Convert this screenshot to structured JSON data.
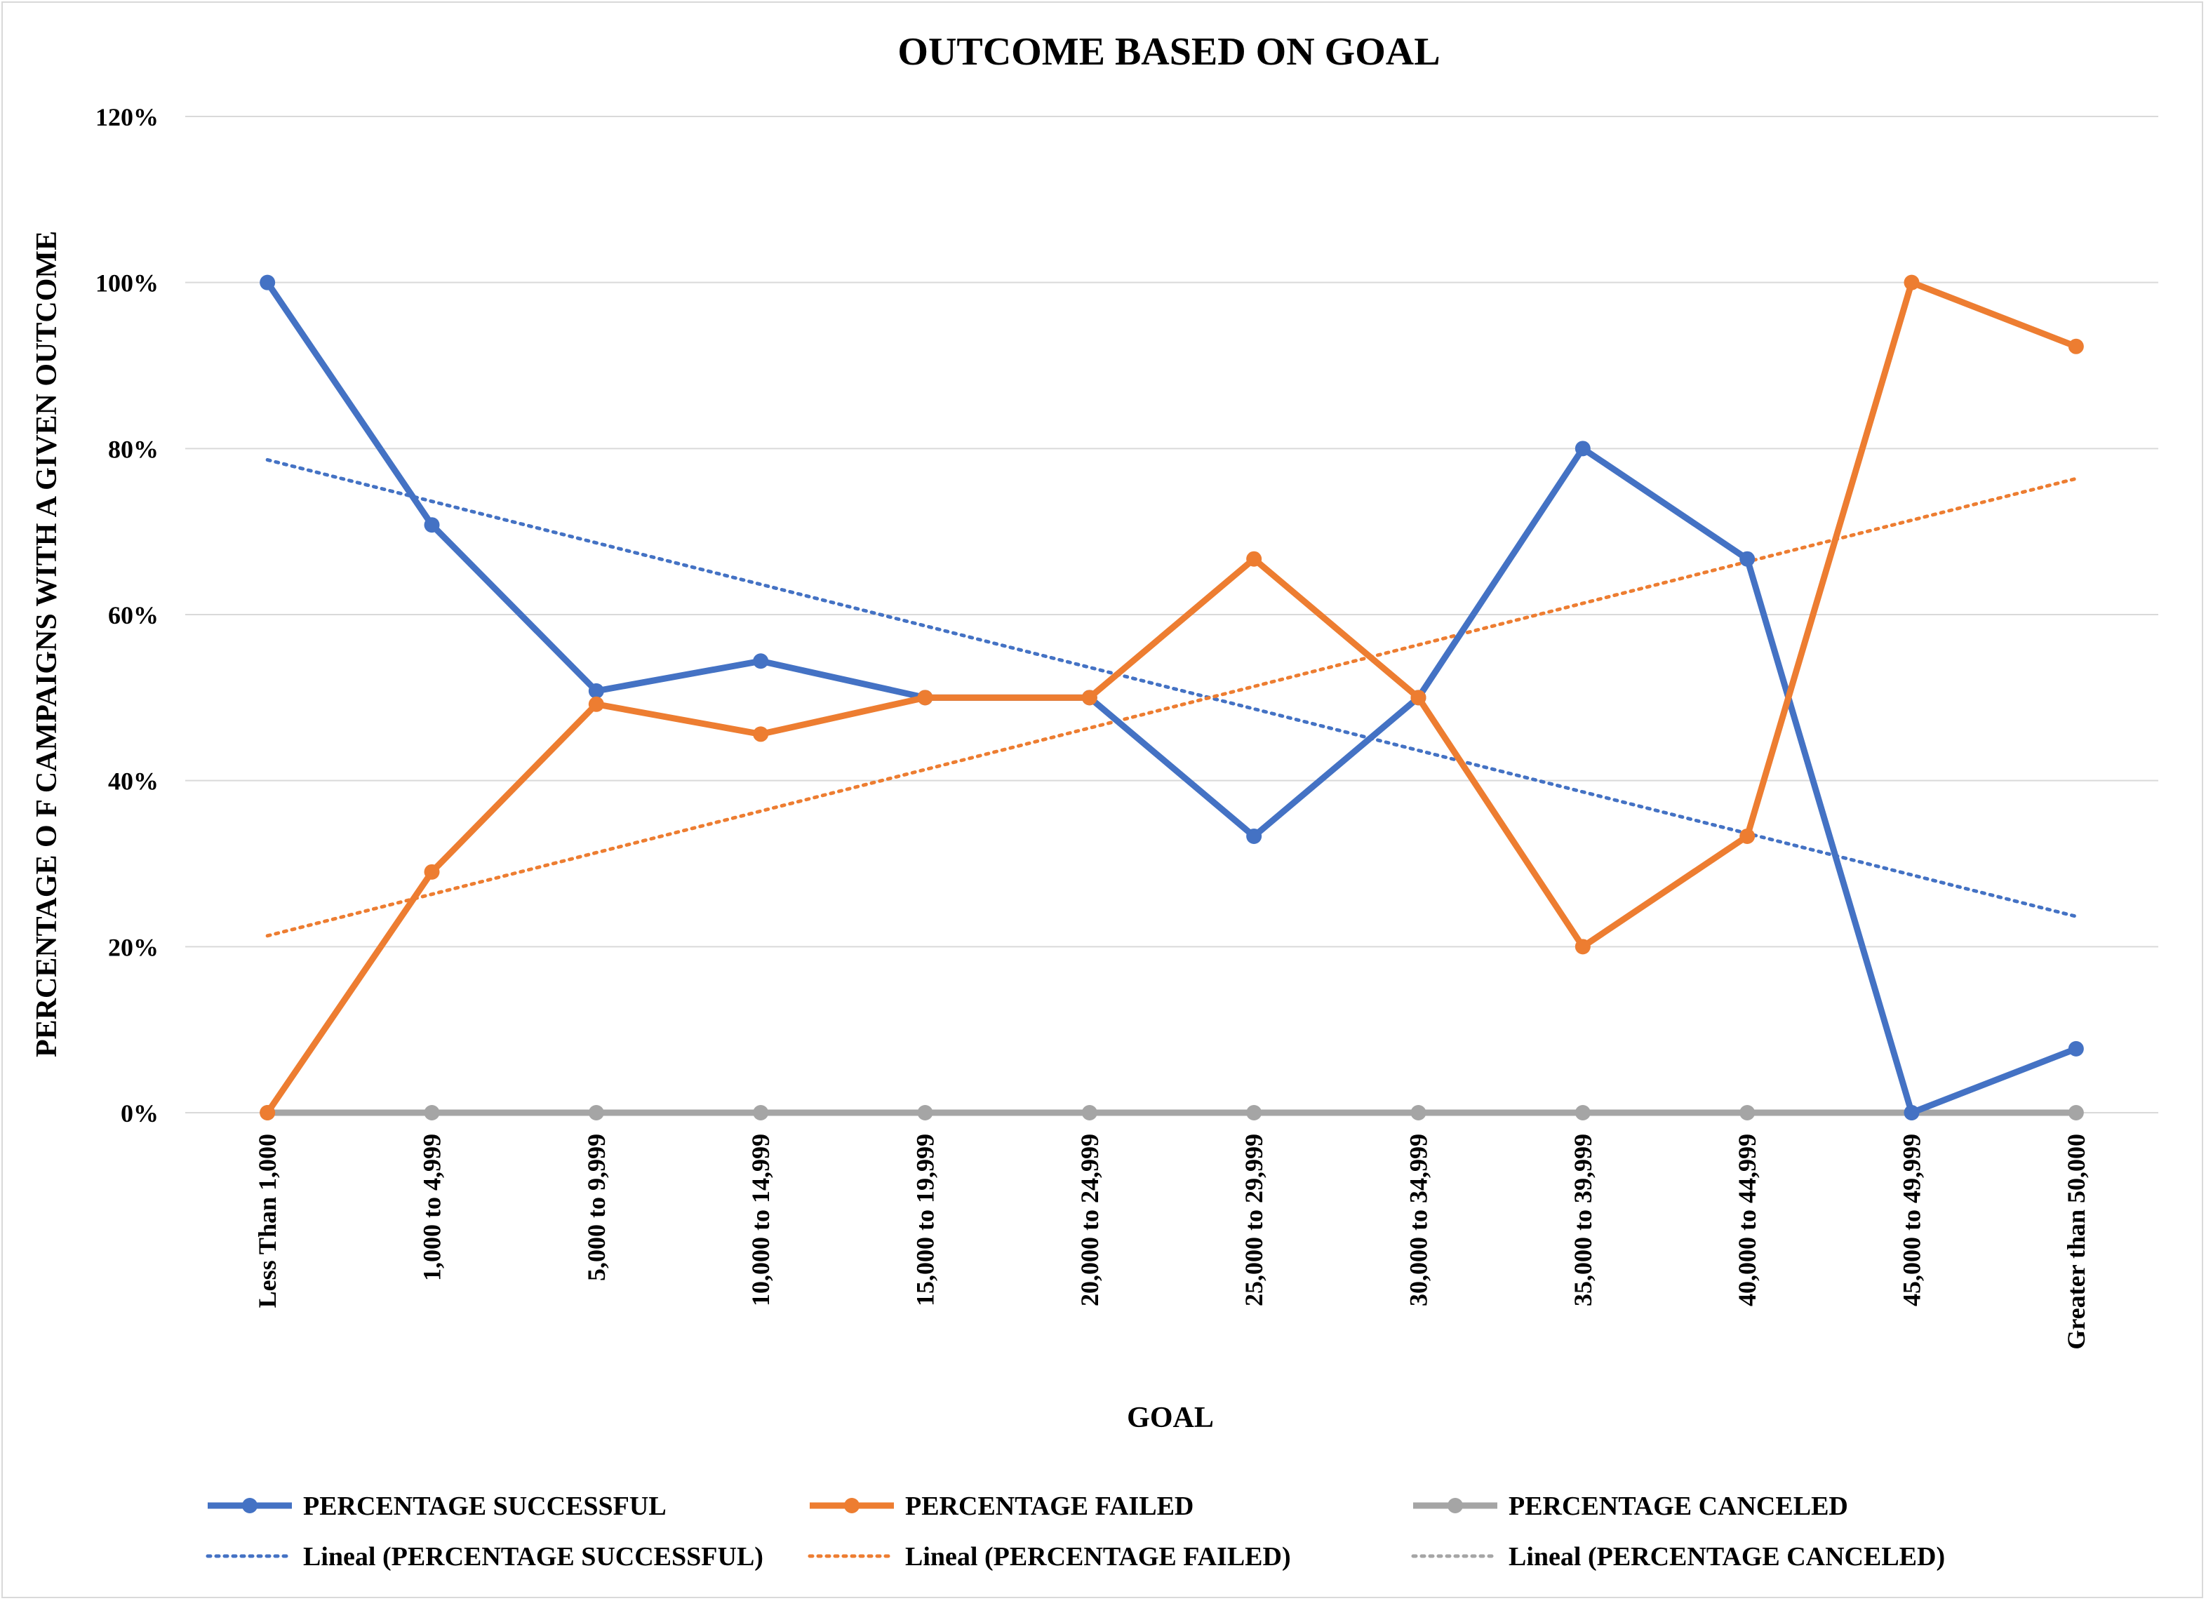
{
  "chart_data": {
    "type": "line",
    "title": "OUTCOME BASED ON GOAL",
    "xlabel": "GOAL",
    "ylabel": "PERCENTAGE O F CAMPAIGNS WITH A GIVEN OUTCOME",
    "categories": [
      "Less Than 1,000",
      "1,000 to 4,999",
      "5,000 to 9,999",
      "10,000 to 14,999",
      "15,000 to 19,999",
      "20,000 to 24,999",
      "25,000 to 29,999",
      "30,000 to 34,999",
      "35,000 to 39,999",
      "40,000 to 44,999",
      "45,000 to 49,999",
      "Greater than 50,000"
    ],
    "ylim": [
      0,
      1.2
    ],
    "yticks": [
      0,
      0.2,
      0.4,
      0.6,
      0.8,
      1.0,
      1.2
    ],
    "ytick_labels": [
      "0%",
      "20%",
      "40%",
      "60%",
      "80%",
      "100%",
      "120%"
    ],
    "grid": true,
    "legend_position": "bottom",
    "series": [
      {
        "name": "PERCENTAGE SUCCESSFUL",
        "color": "#4472c4",
        "values": [
          1.0,
          0.708,
          0.508,
          0.544,
          0.5,
          0.5,
          0.333,
          0.5,
          0.8,
          0.667,
          0.0,
          0.077
        ]
      },
      {
        "name": "PERCENTAGE FAILED",
        "color": "#ed7d31",
        "values": [
          0.0,
          0.29,
          0.492,
          0.456,
          0.5,
          0.5,
          0.667,
          0.5,
          0.2,
          0.333,
          1.0,
          0.923
        ]
      },
      {
        "name": "PERCENTAGE CANCELED",
        "color": "#a5a5a5",
        "values": [
          0,
          0,
          0,
          0,
          0,
          0,
          0,
          0,
          0,
          0,
          0,
          0
        ]
      }
    ],
    "trendlines": [
      {
        "name": "Lineal (PERCENTAGE SUCCESSFUL)",
        "color": "#4472c4",
        "type": "linear",
        "of_series": 0
      },
      {
        "name": "Lineal (PERCENTAGE FAILED)",
        "color": "#ed7d31",
        "type": "linear",
        "of_series": 1
      },
      {
        "name": "Lineal (PERCENTAGE CANCELED)",
        "color": "#a5a5a5",
        "type": "linear",
        "of_series": 2
      }
    ]
  }
}
